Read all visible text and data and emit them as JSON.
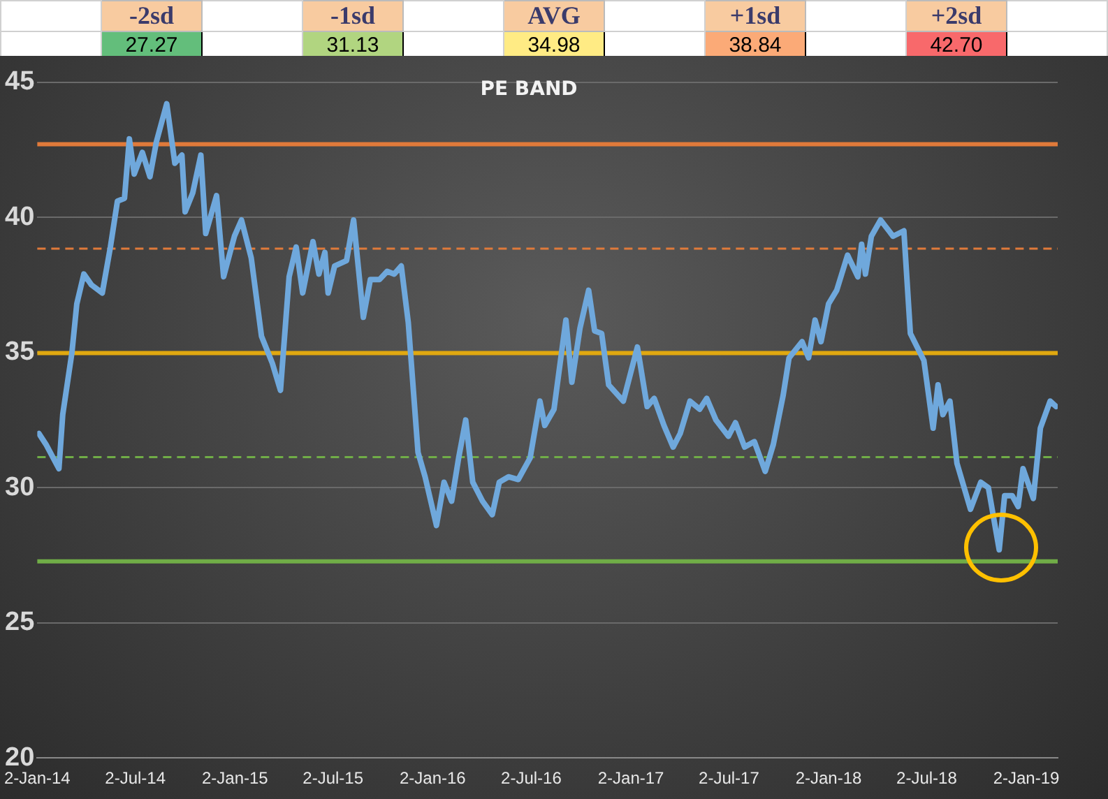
{
  "chart_data": {
    "type": "line",
    "title": "PE BAND",
    "x": [
      "2014-01-05",
      "2014-01-18",
      "2014-02-11",
      "2014-02-18",
      "2014-03-07",
      "2014-03-16",
      "2014-03-29",
      "2014-04-12",
      "2014-05-02",
      "2014-05-17",
      "2014-05-30",
      "2014-06-12",
      "2014-06-21",
      "2014-06-30",
      "2014-07-15",
      "2014-07-29",
      "2014-08-10",
      "2014-08-29",
      "2014-09-13",
      "2014-09-26",
      "2014-10-02",
      "2014-10-16",
      "2014-10-31",
      "2014-11-09",
      "2014-11-29",
      "2014-12-12",
      "2015-01-01",
      "2015-01-14",
      "2015-02-01",
      "2015-02-20",
      "2015-03-12",
      "2015-03-27",
      "2015-04-12",
      "2015-04-25",
      "2015-05-07",
      "2015-05-26",
      "2015-06-06",
      "2015-06-17",
      "2015-06-23",
      "2015-07-05",
      "2015-07-27",
      "2015-08-09",
      "2015-08-27",
      "2015-09-09",
      "2015-09-26",
      "2015-10-10",
      "2015-10-23",
      "2015-11-05",
      "2015-11-18",
      "2015-12-06",
      "2015-12-19",
      "2016-01-09",
      "2016-01-23",
      "2016-02-06",
      "2016-02-19",
      "2016-03-03",
      "2016-03-16",
      "2016-04-03",
      "2016-04-21",
      "2016-05-04",
      "2016-05-21",
      "2016-06-08",
      "2016-06-30",
      "2016-07-18",
      "2016-07-27",
      "2016-08-13",
      "2016-09-04",
      "2016-09-15",
      "2016-09-30",
      "2016-10-16",
      "2016-10-27",
      "2016-11-09",
      "2016-11-22",
      "2016-12-19",
      "2017-01-14",
      "2017-02-01",
      "2017-02-14",
      "2017-03-04",
      "2017-03-21",
      "2017-04-03",
      "2017-04-21",
      "2017-05-09",
      "2017-05-22",
      "2017-06-08",
      "2017-07-01",
      "2017-07-14",
      "2017-07-31",
      "2017-08-18",
      "2017-09-07",
      "2017-09-22",
      "2017-10-10",
      "2017-10-21",
      "2017-11-14",
      "2017-11-26",
      "2017-12-08",
      "2017-12-19",
      "2018-01-02",
      "2018-01-17",
      "2018-02-06",
      "2018-02-25",
      "2018-03-04",
      "2018-03-11",
      "2018-03-22",
      "2018-04-08",
      "2018-05-01",
      "2018-05-21",
      "2018-06-02",
      "2018-06-27",
      "2018-07-14",
      "2018-07-23",
      "2018-08-01",
      "2018-08-14",
      "2018-08-27",
      "2018-09-21",
      "2018-10-10",
      "2018-10-24",
      "2018-11-13",
      "2018-11-23",
      "2018-12-07",
      "2018-12-18",
      "2018-12-27",
      "2019-01-15",
      "2019-01-28",
      "2019-02-15",
      "2019-02-26"
    ],
    "series": [
      {
        "color": "#6fa8dc",
        "values": [
          32.0,
          31.6,
          30.7,
          32.7,
          35.0,
          36.8,
          37.9,
          37.5,
          37.2,
          38.9,
          40.6,
          40.7,
          42.9,
          41.6,
          42.4,
          41.5,
          42.8,
          44.2,
          42.0,
          42.3,
          40.2,
          40.9,
          42.3,
          39.4,
          40.8,
          37.8,
          39.3,
          39.9,
          38.5,
          35.6,
          34.6,
          33.6,
          37.8,
          38.9,
          37.2,
          39.1,
          37.9,
          38.7,
          37.2,
          38.2,
          38.4,
          39.9,
          36.3,
          37.7,
          37.7,
          38.0,
          37.9,
          38.2,
          36.1,
          31.3,
          30.4,
          28.6,
          30.2,
          29.5,
          31.1,
          32.5,
          30.2,
          29.5,
          29.0,
          30.2,
          30.4,
          30.3,
          31.1,
          33.2,
          32.3,
          32.9,
          36.2,
          33.9,
          35.9,
          37.3,
          35.8,
          35.7,
          33.8,
          33.2,
          35.2,
          33.0,
          33.3,
          32.3,
          31.5,
          32.0,
          33.2,
          32.9,
          33.3,
          32.5,
          31.9,
          32.4,
          31.5,
          31.7,
          30.6,
          31.6,
          33.4,
          34.8,
          35.4,
          34.8,
          36.2,
          35.4,
          36.8,
          37.3,
          38.6,
          37.8,
          39.0,
          37.9,
          39.3,
          39.9,
          39.3,
          39.5,
          35.7,
          34.7,
          32.2,
          33.8,
          32.7,
          33.2,
          30.9,
          29.2,
          30.2,
          30.0,
          27.7,
          29.7,
          29.7,
          29.3,
          30.7,
          29.6,
          32.2,
          33.2,
          33.0
        ]
      }
    ],
    "xlim": [
      "2014-01-02",
      "2019-03-01"
    ],
    "xticks": [
      {
        "value": "2014-01-02",
        "label": "2-Jan-14"
      },
      {
        "value": "2014-07-02",
        "label": "2-Jul-14"
      },
      {
        "value": "2015-01-02",
        "label": "2-Jan-15"
      },
      {
        "value": "2015-07-02",
        "label": "2-Jul-15"
      },
      {
        "value": "2016-01-02",
        "label": "2-Jan-16"
      },
      {
        "value": "2016-07-02",
        "label": "2-Jul-16"
      },
      {
        "value": "2017-01-02",
        "label": "2-Jan-17"
      },
      {
        "value": "2017-07-02",
        "label": "2-Jul-17"
      },
      {
        "value": "2018-01-02",
        "label": "2-Jan-18"
      },
      {
        "value": "2018-07-02",
        "label": "2-Jul-18"
      },
      {
        "value": "2019-01-02",
        "label": "2-Jan-19"
      }
    ],
    "ylim": [
      20,
      45
    ],
    "yticks": [
      20,
      25,
      30,
      35,
      40,
      45
    ],
    "grid": "y",
    "legend": false,
    "marker": "none",
    "line_style": "solid",
    "annotations": [
      "-2sd",
      "-1sd",
      "AVG",
      "+1sd",
      "+2sd",
      "27.27",
      "31.13",
      "34.98",
      "38.84",
      "42.70"
    ],
    "ref_lines": [
      {
        "axis": "y",
        "value": 27.27,
        "color": "#70ad47",
        "line_style": "solid"
      },
      {
        "axis": "y",
        "value": 31.13,
        "color": "#70ad47",
        "line_style": "dashed"
      },
      {
        "axis": "y",
        "value": 34.98,
        "color": "#e0a810",
        "line_style": "solid"
      },
      {
        "axis": "y",
        "value": 38.84,
        "color": "#e07a3a",
        "line_style": "dashed"
      },
      {
        "axis": "y",
        "value": 42.7,
        "color": "#e07a3a",
        "line_style": "solid"
      }
    ]
  }
}
